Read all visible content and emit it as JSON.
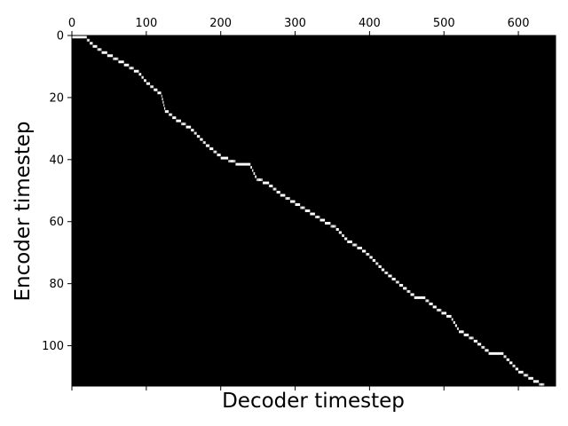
{
  "chart_data": {
    "type": "heatmap",
    "title": "",
    "xlabel": "Decoder timestep",
    "ylabel": "Encoder timestep",
    "colormap": "gray",
    "background_color": "#000000",
    "highlight_color": "#ffffff",
    "xlim": [
      0,
      650
    ],
    "ylim": [
      0,
      113
    ],
    "y_inverted": true,
    "x_tick_position": "top",
    "grid": false,
    "x_ticks": [
      {
        "value": 0,
        "label": "0"
      },
      {
        "value": 100,
        "label": "100"
      },
      {
        "value": 200,
        "label": "200"
      },
      {
        "value": 300,
        "label": "300"
      },
      {
        "value": 400,
        "label": "400"
      },
      {
        "value": 500,
        "label": "500"
      },
      {
        "value": 600,
        "label": "600"
      }
    ],
    "y_ticks": [
      {
        "value": 0,
        "label": "0"
      },
      {
        "value": 20,
        "label": "20"
      },
      {
        "value": 40,
        "label": "40"
      },
      {
        "value": 60,
        "label": "60"
      },
      {
        "value": 80,
        "label": "80"
      },
      {
        "value": 100,
        "label": "100"
      }
    ],
    "alignment_path": [
      [
        0,
        0
      ],
      [
        20,
        1
      ],
      [
        28,
        3
      ],
      [
        40,
        5
      ],
      [
        55,
        7
      ],
      [
        70,
        9
      ],
      [
        90,
        12
      ],
      [
        100,
        15
      ],
      [
        120,
        19
      ],
      [
        125,
        24
      ],
      [
        140,
        27
      ],
      [
        160,
        30
      ],
      [
        180,
        35
      ],
      [
        200,
        39
      ],
      [
        220,
        41
      ],
      [
        240,
        42
      ],
      [
        248,
        46
      ],
      [
        265,
        48
      ],
      [
        280,
        51
      ],
      [
        300,
        54
      ],
      [
        320,
        57
      ],
      [
        340,
        60
      ],
      [
        355,
        62
      ],
      [
        370,
        66
      ],
      [
        390,
        69
      ],
      [
        400,
        71
      ],
      [
        420,
        76
      ],
      [
        440,
        80
      ],
      [
        460,
        84
      ],
      [
        475,
        85
      ],
      [
        490,
        88
      ],
      [
        510,
        91
      ],
      [
        520,
        95
      ],
      [
        540,
        98
      ],
      [
        560,
        102
      ],
      [
        580,
        103
      ],
      [
        600,
        108
      ],
      [
        620,
        111
      ],
      [
        635,
        113
      ],
      [
        650,
        113
      ]
    ]
  }
}
